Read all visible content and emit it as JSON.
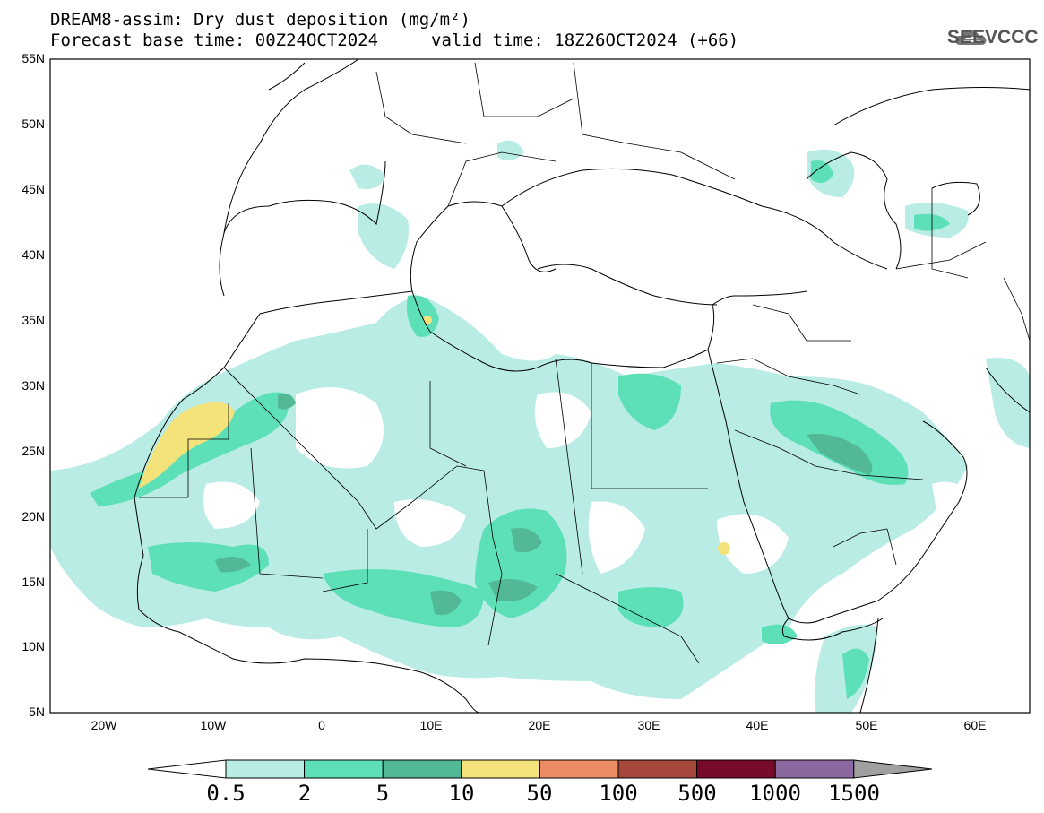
{
  "header": {
    "title_line1": "DREAM8-assim: Dry dust deposition (mg/m²)",
    "title_line2_left": "Forecast base time: 00Z24OCT2024",
    "title_line2_right": "valid time: 18Z26OCT2024 (+66)",
    "logo_text": "SEEVCCC"
  },
  "map": {
    "lon_range": [
      -25,
      65
    ],
    "lat_range": [
      5,
      55
    ],
    "lat_ticks": [
      "55N",
      "50N",
      "45N",
      "40N",
      "35N",
      "30N",
      "25N",
      "20N",
      "15N",
      "10N",
      "5N"
    ],
    "lon_ticks": [
      "20W",
      "10W",
      "0",
      "10E",
      "20E",
      "30E",
      "40E",
      "50E",
      "60E"
    ]
  },
  "colorbar": {
    "labels": [
      "0.5",
      "2",
      "5",
      "10",
      "50",
      "100",
      "500",
      "1000",
      "1500"
    ],
    "colors": [
      "#ffffff",
      "#b8ece4",
      "#5de0b8",
      "#52b895",
      "#f4e27a",
      "#eb8c65",
      "#a6473c",
      "#780a2a",
      "#8c68a0",
      "#a0a0a0"
    ]
  }
}
